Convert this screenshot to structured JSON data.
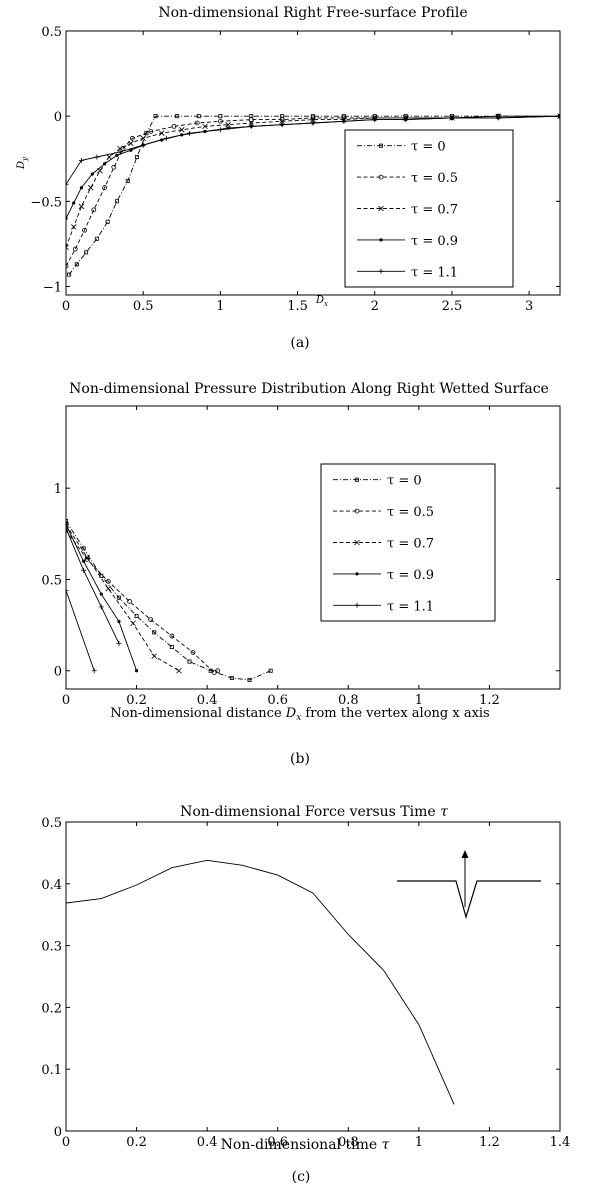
{
  "chart_data": [
    {
      "id": "a",
      "type": "line",
      "title": "Non-dimensional Right Free-surface Profile",
      "xlabel_base": "D",
      "xlabel_sub": "x",
      "ylabel_base": "D",
      "ylabel_sub": "y",
      "caption": "(a)",
      "xlim": [
        0,
        3.2
      ],
      "ylim": [
        -1.05,
        0.5
      ],
      "xticks": [
        0,
        0.5,
        1,
        1.5,
        2,
        2.5,
        3
      ],
      "xtick_labels": [
        "0",
        "0.5",
        "1",
        "1.5",
        "2",
        "2.5",
        "3"
      ],
      "yticks": [
        -1,
        -0.5,
        0,
        0.5
      ],
      "ytick_labels": [
        "−1",
        "−0.5",
        "0",
        "0.5"
      ],
      "grid": false,
      "legend_placement": "center-right",
      "series": [
        {
          "name": "τ = 0",
          "dash": "dashdot",
          "marker": "square",
          "x": [
            0.02,
            0.07,
            0.13,
            0.2,
            0.27,
            0.33,
            0.4,
            0.46,
            0.52,
            0.58,
            0.72,
            0.86,
            1.0,
            1.2,
            1.4,
            1.6,
            1.8,
            2.0,
            2.2,
            2.5,
            2.8,
            3.2
          ],
          "y": [
            -0.93,
            -0.87,
            -0.8,
            -0.72,
            -0.62,
            -0.5,
            -0.38,
            -0.24,
            -0.1,
            0.0,
            0.0,
            0.0,
            0.0,
            0.0,
            0.0,
            0.0,
            0.0,
            0.0,
            0.0,
            0.0,
            0.0,
            0.0
          ]
        },
        {
          "name": "τ = 0.5",
          "dash": "dashed",
          "marker": "circle",
          "x": [
            0.0,
            0.06,
            0.12,
            0.18,
            0.25,
            0.31,
            0.37,
            0.43,
            0.55,
            0.7,
            0.85,
            1.0,
            1.2,
            1.4,
            1.6,
            1.8,
            2.0,
            2.2,
            2.5,
            2.8,
            3.2
          ],
          "y": [
            -0.88,
            -0.78,
            -0.67,
            -0.55,
            -0.42,
            -0.3,
            -0.19,
            -0.13,
            -0.09,
            -0.06,
            -0.04,
            -0.03,
            -0.02,
            -0.02,
            -0.01,
            -0.01,
            -0.01,
            -0.01,
            -0.01,
            0.0,
            0.0
          ]
        },
        {
          "name": "τ = 0.7",
          "dash": "dashed",
          "marker": "x",
          "x": [
            0.0,
            0.05,
            0.1,
            0.16,
            0.22,
            0.28,
            0.35,
            0.42,
            0.5,
            0.62,
            0.75,
            0.9,
            1.05,
            1.2,
            1.4,
            1.6,
            1.8,
            2.0,
            2.2,
            2.5,
            2.8,
            3.2
          ],
          "y": [
            -0.77,
            -0.65,
            -0.53,
            -0.42,
            -0.32,
            -0.24,
            -0.19,
            -0.16,
            -0.13,
            -0.1,
            -0.08,
            -0.06,
            -0.05,
            -0.04,
            -0.03,
            -0.02,
            -0.02,
            -0.01,
            -0.01,
            -0.01,
            0.0,
            0.0
          ]
        },
        {
          "name": "τ = 0.9",
          "dash": "solid",
          "marker": "dot",
          "x": [
            0.0,
            0.05,
            0.1,
            0.17,
            0.25,
            0.33,
            0.42,
            0.5,
            0.62,
            0.75,
            0.9,
            1.05,
            1.2,
            1.4,
            1.6,
            1.8,
            2.0,
            2.2,
            2.5,
            2.8,
            3.2
          ],
          "y": [
            -0.6,
            -0.51,
            -0.42,
            -0.34,
            -0.28,
            -0.23,
            -0.2,
            -0.17,
            -0.14,
            -0.11,
            -0.09,
            -0.07,
            -0.06,
            -0.05,
            -0.04,
            -0.03,
            -0.02,
            -0.02,
            -0.01,
            -0.01,
            0.0
          ]
        },
        {
          "name": "τ = 1.1",
          "dash": "solid",
          "marker": "plus",
          "x": [
            0.0,
            0.1,
            0.2,
            0.35,
            0.5,
            0.65,
            0.8,
            1.0,
            1.2,
            1.4,
            1.6,
            1.8,
            2.0,
            2.2,
            2.5,
            2.8,
            3.2
          ],
          "y": [
            -0.4,
            -0.26,
            -0.24,
            -0.21,
            -0.17,
            -0.13,
            -0.1,
            -0.08,
            -0.06,
            -0.05,
            -0.04,
            -0.03,
            -0.02,
            -0.02,
            -0.01,
            -0.01,
            0.0
          ]
        }
      ]
    },
    {
      "id": "b",
      "type": "line",
      "title": "Non-dimensional Pressure Distribution Along Right Wetted Surface",
      "xlabel_before": "Non-dimensional distance ",
      "xlabel_base": "D",
      "xlabel_sub": "x",
      "xlabel_after": " from the vertex along x axis",
      "caption": "(b)",
      "xlim": [
        0,
        1.4
      ],
      "ylim": [
        -0.1,
        1.45
      ],
      "xticks": [
        0,
        0.2,
        0.4,
        0.6,
        0.8,
        1,
        1.2
      ],
      "xtick_labels": [
        "0",
        "0.2",
        "0.4",
        "0.6",
        "0.8",
        "1",
        "1.2"
      ],
      "yticks": [
        0,
        0.5,
        1
      ],
      "ytick_labels": [
        "0",
        "0.5",
        "1"
      ],
      "grid": false,
      "legend_placement": "top-right",
      "series": [
        {
          "name": "τ = 0",
          "dash": "dashdot",
          "marker": "square",
          "x": [
            0.0,
            0.05,
            0.1,
            0.15,
            0.2,
            0.25,
            0.3,
            0.35,
            0.41,
            0.47,
            0.52,
            0.58
          ],
          "y": [
            0.82,
            0.67,
            0.52,
            0.4,
            0.3,
            0.21,
            0.13,
            0.05,
            0.0,
            -0.04,
            -0.05,
            0.0
          ]
        },
        {
          "name": "τ = 0.5",
          "dash": "dashed",
          "marker": "circle",
          "x": [
            0.0,
            0.06,
            0.12,
            0.18,
            0.24,
            0.3,
            0.36,
            0.42,
            0.43
          ],
          "y": [
            0.77,
            0.61,
            0.49,
            0.38,
            0.28,
            0.19,
            0.1,
            -0.01,
            0.0
          ]
        },
        {
          "name": "τ = 0.7",
          "dash": "dashed",
          "marker": "x",
          "x": [
            0.0,
            0.06,
            0.12,
            0.19,
            0.25,
            0.32
          ],
          "y": [
            0.8,
            0.62,
            0.45,
            0.26,
            0.08,
            0.0
          ]
        },
        {
          "name": "τ = 0.9",
          "dash": "solid",
          "marker": "dot",
          "x": [
            0.0,
            0.05,
            0.1,
            0.15,
            0.2
          ],
          "y": [
            0.8,
            0.6,
            0.42,
            0.27,
            0.0
          ]
        },
        {
          "name": "τ = 1.1",
          "dash": "solid",
          "marker": "plus",
          "x": [
            0.0,
            0.08
          ],
          "y": [
            0.44,
            0.0
          ]
        },
        {
          "name": "",
          "dash": "solid",
          "marker": "plus",
          "legend": false,
          "x": [
            0.0,
            0.05,
            0.1,
            0.15
          ],
          "y": [
            0.78,
            0.55,
            0.35,
            0.15
          ]
        }
      ]
    },
    {
      "id": "c",
      "type": "line",
      "title_before": "Non-dimensional Force versus Time ",
      "title_symbol": "τ",
      "xlabel_before": "Non-dimensional time ",
      "xlabel_symbol": "τ",
      "caption": "(c)",
      "xlim": [
        0,
        1.4
      ],
      "ylim": [
        0,
        0.5
      ],
      "xticks": [
        0,
        0.2,
        0.4,
        0.6,
        0.8,
        1,
        1.2,
        1.4
      ],
      "xtick_labels": [
        "0",
        "0.2",
        "0.4",
        "0.6",
        "0.8",
        "1",
        "1.2",
        "1.4"
      ],
      "yticks": [
        0,
        0.1,
        0.2,
        0.3,
        0.4,
        0.5
      ],
      "ytick_labels": [
        "0",
        "0.1",
        "0.2",
        "0.3",
        "0.4",
        "0.5"
      ],
      "grid": false,
      "inset": "wedge entering free surface with upward arrow",
      "series": [
        {
          "name": "",
          "dash": "solid",
          "marker": "none",
          "x": [
            0.0,
            0.1,
            0.2,
            0.3,
            0.4,
            0.5,
            0.6,
            0.7,
            0.8,
            0.9,
            1.0,
            1.1
          ],
          "y": [
            0.369,
            0.376,
            0.398,
            0.426,
            0.438,
            0.43,
            0.414,
            0.385,
            0.318,
            0.26,
            0.172,
            0.043
          ]
        }
      ]
    }
  ]
}
